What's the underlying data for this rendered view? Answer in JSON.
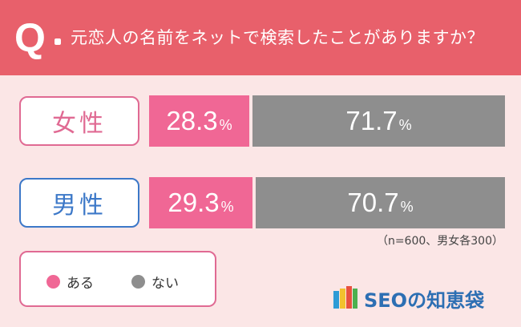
{
  "header": {
    "q_mark": "Q",
    "question": "元恋人の名前をネットで検索したことがありますか？"
  },
  "colors": {
    "header": "#e8606b",
    "background": "#fbe6e6",
    "yes": "#f06795",
    "no": "#8e8e8e",
    "female": "#e06a93",
    "male": "#3c78c8"
  },
  "chart_data": {
    "type": "bar",
    "stacked": true,
    "orientation": "horizontal",
    "categories": [
      "女性",
      "男性"
    ],
    "series": [
      {
        "name": "ある",
        "values": [
          28.3,
          29.3
        ]
      },
      {
        "name": "ない",
        "values": [
          71.7,
          70.7
        ]
      }
    ],
    "unit": "%",
    "legend_position": "bottom-left",
    "note": "（n=600、男女各300）"
  },
  "brand": {
    "name": "SEOの知恵袋"
  }
}
